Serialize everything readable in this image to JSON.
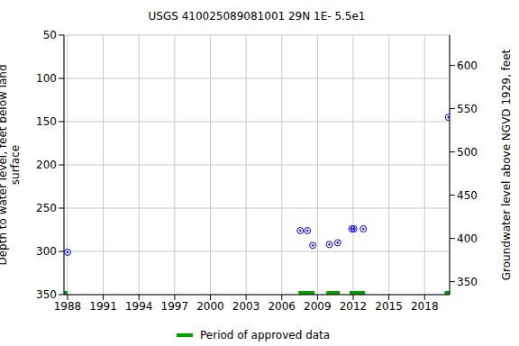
{
  "chart_data": {
    "type": "scatter",
    "title": "USGS 410025089081001 29N 1E- 5.5e1",
    "y_label": "Depth to water level, feet below land surface",
    "y2_label": "Groundwater level above NGVD 1929, feet",
    "x": [
      1988.0,
      2007.55,
      2008.15,
      2008.6,
      2010.0,
      2010.7,
      2011.9,
      2012.05,
      2012.85,
      2020.0
    ],
    "values": [
      301,
      276,
      276,
      293,
      292,
      290,
      274,
      274,
      274,
      145
    ],
    "color": "#0000ff",
    "marker": "circle",
    "xlim": [
      1987.7,
      2020.1
    ],
    "xticks": [
      1988,
      1991,
      1994,
      1997,
      2000,
      2003,
      2006,
      2009,
      2012,
      2015,
      2018
    ],
    "ylim": [
      50,
      350
    ],
    "yticks": [
      50,
      100,
      150,
      200,
      250,
      300,
      350
    ],
    "y2lim": [
      335,
      635
    ],
    "y2ticks": [
      350,
      400,
      450,
      500,
      550,
      600
    ],
    "grid": true,
    "approved_periods": {
      "name": "Period of approved data",
      "color": "#00a000",
      "periods": [
        [
          1987.7,
          1988.0
        ],
        [
          2007.4,
          2008.76
        ],
        [
          2009.74,
          2010.88
        ],
        [
          2011.7,
          2013.0
        ],
        [
          2019.67,
          2020.1
        ]
      ]
    }
  }
}
